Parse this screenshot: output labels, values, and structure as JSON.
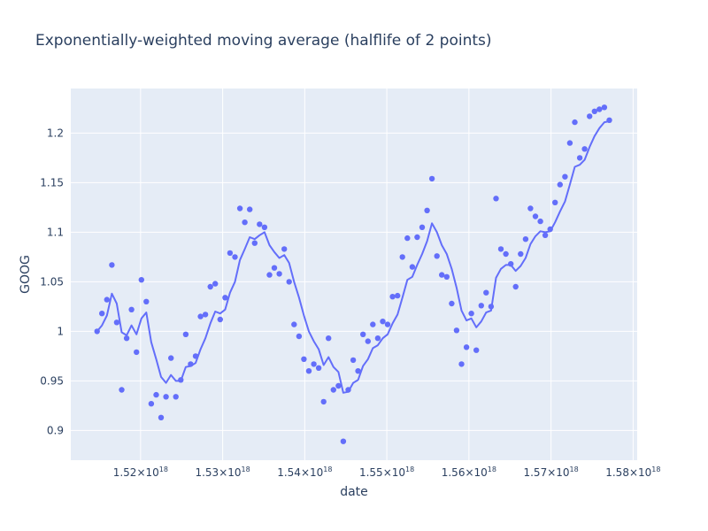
{
  "chart_data": {
    "type": "scatter",
    "title": "Exponentially-weighted moving average (halflife of 2 points)",
    "xlabel": "date",
    "ylabel": "GOOG",
    "xlim": [
      1.5115e+18,
      1.5805e+18
    ],
    "ylim": [
      0.87,
      1.245
    ],
    "x_tick_base": "1.",
    "x_tick_values": [
      1.52e+18,
      1.53e+18,
      1.54e+18,
      1.55e+18,
      1.56e+18,
      1.57e+18,
      1.58e+18
    ],
    "x_tick_mantissas": [
      "52",
      "53",
      "54",
      "55",
      "56",
      "57",
      "58"
    ],
    "x_tick_suffix": "×10",
    "x_tick_exponent": "18",
    "y_tick_values": [
      0.9,
      0.95,
      1,
      1.05,
      1.1,
      1.15,
      1.2
    ],
    "y_tick_labels": [
      "0.9",
      "0.95",
      "1",
      "1.05",
      "1.1",
      "1.15",
      "1.2"
    ],
    "grid": true,
    "legend": "none",
    "colors": {
      "series": "#636efa",
      "plot_bg": "#e5ecf6",
      "text": "#2a3f5f"
    },
    "series": [
      {
        "mode": "markers",
        "points": [
          [
            1.5147e+18,
            1.0
          ],
          [
            1.5153e+18,
            1.018
          ],
          [
            1.5159e+18,
            1.032
          ],
          [
            1.5165e+18,
            1.067
          ],
          [
            1.5171e+18,
            1.009
          ],
          [
            1.5177e+18,
            0.941
          ],
          [
            1.5183e+18,
            0.993
          ],
          [
            1.5189e+18,
            1.022
          ],
          [
            1.5195e+18,
            0.979
          ],
          [
            1.5201e+18,
            1.052
          ],
          [
            1.5207e+18,
            1.03
          ],
          [
            1.5213e+18,
            0.927
          ],
          [
            1.5219e+18,
            0.936
          ],
          [
            1.5225e+18,
            0.913
          ],
          [
            1.5231e+18,
            0.934
          ],
          [
            1.5237e+18,
            0.973
          ],
          [
            1.5243e+18,
            0.934
          ],
          [
            1.5249e+18,
            0.951
          ],
          [
            1.5255e+18,
            0.997
          ],
          [
            1.5261e+18,
            0.967
          ],
          [
            1.5267e+18,
            0.975
          ],
          [
            1.5273e+18,
            1.015
          ],
          [
            1.5279e+18,
            1.017
          ],
          [
            1.5285e+18,
            1.045
          ],
          [
            1.5291e+18,
            1.048
          ],
          [
            1.5297e+18,
            1.012
          ],
          [
            1.5303e+18,
            1.034
          ],
          [
            1.5309e+18,
            1.079
          ],
          [
            1.5315e+18,
            1.075
          ],
          [
            1.5321e+18,
            1.124
          ],
          [
            1.5327e+18,
            1.11
          ],
          [
            1.5333e+18,
            1.123
          ],
          [
            1.5339e+18,
            1.089
          ],
          [
            1.5345e+18,
            1.108
          ],
          [
            1.5351e+18,
            1.105
          ],
          [
            1.5357e+18,
            1.057
          ],
          [
            1.5363e+18,
            1.064
          ],
          [
            1.5369e+18,
            1.058
          ],
          [
            1.5375e+18,
            1.083
          ],
          [
            1.5381e+18,
            1.05
          ],
          [
            1.5387e+18,
            1.007
          ],
          [
            1.5393e+18,
            0.995
          ],
          [
            1.5399e+18,
            0.972
          ],
          [
            1.5405e+18,
            0.96
          ],
          [
            1.5411e+18,
            0.967
          ],
          [
            1.5417e+18,
            0.963
          ],
          [
            1.5423e+18,
            0.929
          ],
          [
            1.5429e+18,
            0.993
          ],
          [
            1.5435e+18,
            0.941
          ],
          [
            1.5441e+18,
            0.945
          ],
          [
            1.5447e+18,
            0.889
          ],
          [
            1.5453e+18,
            0.941
          ],
          [
            1.5459e+18,
            0.971
          ],
          [
            1.5465e+18,
            0.96
          ],
          [
            1.5471e+18,
            0.997
          ],
          [
            1.5477e+18,
            0.99
          ],
          [
            1.5483e+18,
            1.007
          ],
          [
            1.5489e+18,
            0.993
          ],
          [
            1.5495e+18,
            1.01
          ],
          [
            1.5501e+18,
            1.007
          ],
          [
            1.5507e+18,
            1.035
          ],
          [
            1.5513e+18,
            1.036
          ],
          [
            1.5519e+18,
            1.075
          ],
          [
            1.5525e+18,
            1.094
          ],
          [
            1.5531e+18,
            1.065
          ],
          [
            1.5537e+18,
            1.095
          ],
          [
            1.5543e+18,
            1.105
          ],
          [
            1.5549e+18,
            1.122
          ],
          [
            1.5555e+18,
            1.154
          ],
          [
            1.5561e+18,
            1.076
          ],
          [
            1.5567e+18,
            1.057
          ],
          [
            1.5573e+18,
            1.055
          ],
          [
            1.5579e+18,
            1.028
          ],
          [
            1.5585e+18,
            1.001
          ],
          [
            1.5591e+18,
            0.967
          ],
          [
            1.5597e+18,
            0.984
          ],
          [
            1.5603e+18,
            1.018
          ],
          [
            1.5609e+18,
            0.981
          ],
          [
            1.5615e+18,
            1.026
          ],
          [
            1.5621e+18,
            1.039
          ],
          [
            1.5627e+18,
            1.025
          ],
          [
            1.5633e+18,
            1.134
          ],
          [
            1.5639e+18,
            1.083
          ],
          [
            1.5645e+18,
            1.078
          ],
          [
            1.5651e+18,
            1.068
          ],
          [
            1.5657e+18,
            1.045
          ],
          [
            1.5663e+18,
            1.078
          ],
          [
            1.5669e+18,
            1.093
          ],
          [
            1.5675e+18,
            1.124
          ],
          [
            1.5681e+18,
            1.116
          ],
          [
            1.5687e+18,
            1.111
          ],
          [
            1.5693e+18,
            1.097
          ],
          [
            1.5699e+18,
            1.103
          ],
          [
            1.5705e+18,
            1.13
          ],
          [
            1.5711e+18,
            1.148
          ],
          [
            1.5717e+18,
            1.156
          ],
          [
            1.5723e+18,
            1.19
          ],
          [
            1.5729e+18,
            1.211
          ],
          [
            1.5735e+18,
            1.175
          ],
          [
            1.5741e+18,
            1.184
          ],
          [
            1.5747e+18,
            1.217
          ],
          [
            1.5753e+18,
            1.222
          ],
          [
            1.5759e+18,
            1.224
          ],
          [
            1.5765e+18,
            1.226
          ],
          [
            1.5771e+18,
            1.213
          ]
        ]
      },
      {
        "mode": "lines",
        "points": [
          [
            1.5147e+18,
            1.0
          ],
          [
            1.5153e+18,
            1.006
          ],
          [
            1.5159e+18,
            1.016
          ],
          [
            1.5165e+18,
            1.038
          ],
          [
            1.5171e+18,
            1.028
          ],
          [
            1.5177e+18,
            0.999
          ],
          [
            1.5183e+18,
            0.996
          ],
          [
            1.5189e+18,
            1.006
          ],
          [
            1.5195e+18,
            0.997
          ],
          [
            1.5201e+18,
            1.013
          ],
          [
            1.5207e+18,
            1.019
          ],
          [
            1.5213e+18,
            0.989
          ],
          [
            1.5219e+18,
            0.972
          ],
          [
            1.5225e+18,
            0.954
          ],
          [
            1.5231e+18,
            0.948
          ],
          [
            1.5237e+18,
            0.956
          ],
          [
            1.5243e+18,
            0.95
          ],
          [
            1.5249e+18,
            0.95
          ],
          [
            1.5255e+18,
            0.964
          ],
          [
            1.5261e+18,
            0.965
          ],
          [
            1.5267e+18,
            0.968
          ],
          [
            1.5273e+18,
            0.982
          ],
          [
            1.5279e+18,
            0.993
          ],
          [
            1.5285e+18,
            1.008
          ],
          [
            1.5291e+18,
            1.02
          ],
          [
            1.5297e+18,
            1.018
          ],
          [
            1.5303e+18,
            1.022
          ],
          [
            1.5309e+18,
            1.039
          ],
          [
            1.5315e+18,
            1.05
          ],
          [
            1.5321e+18,
            1.072
          ],
          [
            1.5327e+18,
            1.083
          ],
          [
            1.5333e+18,
            1.095
          ],
          [
            1.5339e+18,
            1.093
          ],
          [
            1.5345e+18,
            1.097
          ],
          [
            1.5351e+18,
            1.1
          ],
          [
            1.5357e+18,
            1.087
          ],
          [
            1.5363e+18,
            1.08
          ],
          [
            1.5369e+18,
            1.074
          ],
          [
            1.5375e+18,
            1.077
          ],
          [
            1.5381e+18,
            1.069
          ],
          [
            1.5387e+18,
            1.05
          ],
          [
            1.5393e+18,
            1.034
          ],
          [
            1.5399e+18,
            1.016
          ],
          [
            1.5405e+18,
            1.0
          ],
          [
            1.5411e+18,
            0.99
          ],
          [
            1.5417e+18,
            0.982
          ],
          [
            1.5423e+18,
            0.966
          ],
          [
            1.5429e+18,
            0.974
          ],
          [
            1.5435e+18,
            0.964
          ],
          [
            1.5441e+18,
            0.959
          ],
          [
            1.5447e+18,
            0.938
          ],
          [
            1.5453e+18,
            0.939
          ],
          [
            1.5459e+18,
            0.948
          ],
          [
            1.5465e+18,
            0.951
          ],
          [
            1.5471e+18,
            0.965
          ],
          [
            1.5477e+18,
            0.972
          ],
          [
            1.5483e+18,
            0.983
          ],
          [
            1.5489e+18,
            0.986
          ],
          [
            1.5495e+18,
            0.993
          ],
          [
            1.5501e+18,
            0.997
          ],
          [
            1.5507e+18,
            1.008
          ],
          [
            1.5513e+18,
            1.017
          ],
          [
            1.5519e+18,
            1.034
          ],
          [
            1.5525e+18,
            1.052
          ],
          [
            1.5531e+18,
            1.055
          ],
          [
            1.5537e+18,
            1.067
          ],
          [
            1.5543e+18,
            1.078
          ],
          [
            1.5549e+18,
            1.091
          ],
          [
            1.5555e+18,
            1.109
          ],
          [
            1.5561e+18,
            1.1
          ],
          [
            1.5567e+18,
            1.087
          ],
          [
            1.5573e+18,
            1.078
          ],
          [
            1.5579e+18,
            1.063
          ],
          [
            1.5585e+18,
            1.044
          ],
          [
            1.5591e+18,
            1.021
          ],
          [
            1.5597e+18,
            1.011
          ],
          [
            1.5603e+18,
            1.013
          ],
          [
            1.5609e+18,
            1.004
          ],
          [
            1.5615e+18,
            1.01
          ],
          [
            1.5621e+18,
            1.019
          ],
          [
            1.5627e+18,
            1.021
          ],
          [
            1.5633e+18,
            1.054
          ],
          [
            1.5639e+18,
            1.063
          ],
          [
            1.5645e+18,
            1.067
          ],
          [
            1.5651e+18,
            1.067
          ],
          [
            1.5657e+18,
            1.061
          ],
          [
            1.5663e+18,
            1.066
          ],
          [
            1.5669e+18,
            1.074
          ],
          [
            1.5675e+18,
            1.088
          ],
          [
            1.5681e+18,
            1.096
          ],
          [
            1.5687e+18,
            1.101
          ],
          [
            1.5693e+18,
            1.1
          ],
          [
            1.5699e+18,
            1.101
          ],
          [
            1.5705e+18,
            1.11
          ],
          [
            1.5711e+18,
            1.121
          ],
          [
            1.5717e+18,
            1.131
          ],
          [
            1.5723e+18,
            1.148
          ],
          [
            1.5729e+18,
            1.166
          ],
          [
            1.5735e+18,
            1.168
          ],
          [
            1.5741e+18,
            1.173
          ],
          [
            1.5747e+18,
            1.186
          ],
          [
            1.5753e+18,
            1.197
          ],
          [
            1.5759e+18,
            1.205
          ],
          [
            1.5765e+18,
            1.211
          ],
          [
            1.5771e+18,
            1.212
          ]
        ]
      }
    ]
  }
}
